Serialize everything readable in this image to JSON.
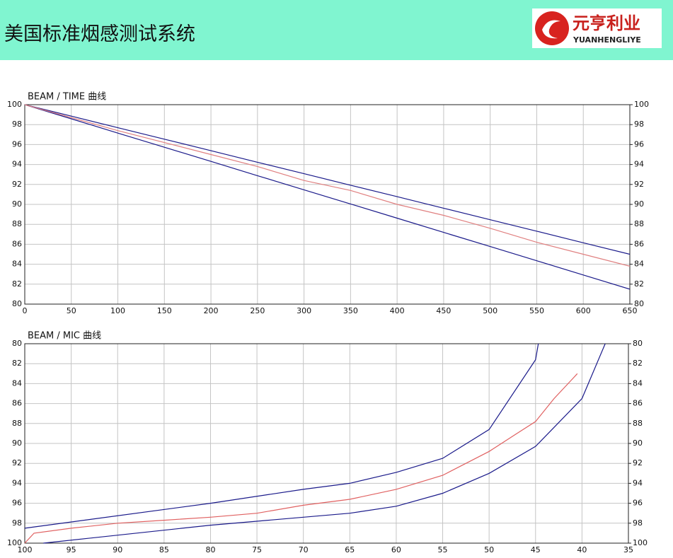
{
  "header": {
    "title": "美国标准烟感测试系统"
  },
  "logo": {
    "name": "元亨利业",
    "pinyin": "YUANHENGLIYE"
  },
  "chart_data": [
    {
      "type": "line",
      "title": "BEAM / TIME 曲线",
      "x": [
        0,
        50,
        100,
        150,
        200,
        250,
        300,
        350,
        400,
        450,
        500,
        550,
        600,
        650
      ],
      "xlim": [
        0,
        650
      ],
      "xticks": [
        0,
        50,
        100,
        150,
        200,
        250,
        300,
        350,
        400,
        450,
        500,
        550,
        600,
        650
      ],
      "ylim": [
        80,
        100
      ],
      "yticks": [
        80,
        82,
        84,
        86,
        88,
        90,
        92,
        94,
        96,
        98,
        100
      ],
      "y2lim": [
        80,
        100
      ],
      "y2ticks": [
        80,
        82,
        84,
        86,
        88,
        90,
        92,
        94,
        96,
        98,
        100
      ],
      "grid": true,
      "series": [
        {
          "color": "#1a1a8a",
          "values": [
            100,
            98.85,
            97.69,
            96.54,
            95.38,
            94.23,
            93.08,
            91.92,
            90.77,
            89.62,
            88.46,
            87.31,
            86.15,
            85
          ]
        },
        {
          "color": "#1a1a8a",
          "values": [
            100,
            98.58,
            97.15,
            95.73,
            94.31,
            92.88,
            91.46,
            90.04,
            88.62,
            87.19,
            85.77,
            84.35,
            82.92,
            81.5
          ]
        },
        {
          "color": "#e08080",
          "values": [
            100,
            98.7,
            97.4,
            96.2,
            95.0,
            93.8,
            92.4,
            91.4,
            90.0,
            88.9,
            87.6,
            86.2,
            85.0,
            83.8
          ]
        }
      ]
    },
    {
      "type": "line",
      "title": "BEAM / MIC 曲线",
      "xlim": [
        100,
        35
      ],
      "xticks": [
        100,
        95,
        90,
        85,
        80,
        75,
        70,
        65,
        60,
        55,
        50,
        45,
        40,
        35
      ],
      "ylim": [
        100,
        80
      ],
      "yticks": [
        100,
        98,
        96,
        94,
        92,
        90,
        88,
        86,
        84,
        82,
        80
      ],
      "y2lim": [
        100,
        80
      ],
      "y2ticks": [
        100,
        98,
        96,
        94,
        92,
        90,
        88,
        86,
        84,
        82,
        80
      ],
      "grid": true,
      "series": [
        {
          "color": "#1a1a8a",
          "x": [
            100,
            80,
            70,
            65,
            60,
            55,
            50,
            45,
            44.7
          ],
          "values": [
            98.5,
            96,
            94.6,
            94,
            92.9,
            91.5,
            88.6,
            81.6,
            80
          ]
        },
        {
          "color": "#1a1a8a",
          "x": [
            98,
            80,
            65,
            60,
            55,
            50,
            45,
            40,
            37.5
          ],
          "values": [
            100,
            98.2,
            97,
            96.3,
            95,
            93,
            90.3,
            85.5,
            80
          ]
        },
        {
          "color": "#e06060",
          "x": [
            100,
            99,
            95,
            90,
            85,
            80,
            75,
            70,
            65,
            60,
            55,
            50,
            47,
            45,
            43,
            41,
            40.5
          ],
          "values": [
            100,
            99,
            98.5,
            98,
            97.7,
            97.4,
            97,
            96.2,
            95.6,
            94.6,
            93.2,
            90.8,
            89,
            87.8,
            85.5,
            83.5,
            83
          ]
        }
      ]
    }
  ]
}
